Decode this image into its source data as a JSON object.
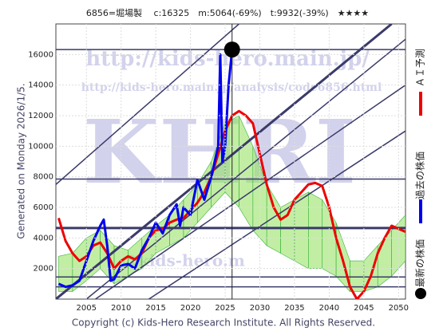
{
  "chart_data": {
    "type": "line",
    "title": "6856=堀場製　 c:16325　m:5064(-69%)　t:9932(-39%)　★★★★",
    "side_label": "Generated on Monday 2026/1/5.",
    "footer": "Copyright (c) Kids-Hero Research Institute. All Rights Reserved.",
    "watermarks": [
      "http://kids-hero.main.jp/",
      "http://kids-hero.main.jp/analysis/code6856.html",
      "KHRI",
      "@kids-hero.m"
    ],
    "xlim": [
      2000.6,
      2051
    ],
    "ylim": [
      0,
      18000
    ],
    "xticks": [
      2005,
      2010,
      2015,
      2020,
      2025,
      2030,
      2035,
      2040,
      2045,
      2050
    ],
    "yticks": [
      2000,
      4000,
      6000,
      8000,
      10000,
      12000,
      14000,
      16000
    ],
    "grid": true,
    "series": [
      {
        "name": "ＡＩ予測",
        "color": "#ee0000",
        "x": [
          2001,
          2002,
          2003,
          2004,
          2005,
          2006,
          2007,
          2008,
          2009,
          2010,
          2011,
          2012,
          2013,
          2014,
          2015,
          2016,
          2017,
          2018,
          2019,
          2020,
          2021,
          2022,
          2023,
          2024,
          2025,
          2026,
          2027,
          2028,
          2029,
          2030,
          2031,
          2032,
          2033,
          2034,
          2035,
          2036,
          2037,
          2038,
          2039,
          2040,
          2041,
          2042,
          2043,
          2044,
          2045,
          2046,
          2047,
          2048,
          2049,
          2050,
          2051
        ],
        "values": [
          5300,
          3800,
          3000,
          2500,
          2800,
          3500,
          3700,
          3000,
          2000,
          2500,
          2800,
          2600,
          3000,
          4000,
          4500,
          4600,
          5000,
          5200,
          5300,
          5800,
          6300,
          7000,
          8000,
          9500,
          11000,
          12000,
          12300,
          12000,
          11500,
          9500,
          7500,
          6000,
          5200,
          5500,
          6500,
          7000,
          7500,
          7600,
          7400,
          6000,
          4000,
          2500,
          800,
          0,
          500,
          1500,
          3000,
          4000,
          4800,
          4600,
          4400
        ]
      },
      {
        "name": "過去の株価",
        "color": "#0000ee",
        "x": [
          2001,
          2002,
          2003,
          2004,
          2005,
          2006,
          2007,
          2007.5,
          2008,
          2008.5,
          2009,
          2010,
          2011,
          2012,
          2013,
          2014,
          2015,
          2016,
          2017,
          2018,
          2018.5,
          2019,
          2020,
          2021,
          2022,
          2023,
          2024,
          2024.3,
          2024.6,
          2025,
          2025.5,
          2026
        ],
        "values": [
          1000,
          800,
          900,
          1200,
          2500,
          3800,
          4800,
          5200,
          3500,
          1200,
          1300,
          2200,
          2300,
          2000,
          3200,
          4000,
          5000,
          4300,
          5500,
          6200,
          4800,
          6000,
          5500,
          7800,
          6500,
          8000,
          10000,
          16000,
          9000,
          10000,
          14000,
          16325
        ]
      }
    ],
    "band": {
      "color": "#8fe05a",
      "x": [
        2001,
        2003,
        2005,
        2007,
        2009,
        2011,
        2013,
        2015,
        2017,
        2019,
        2021,
        2023,
        2025,
        2027,
        2029,
        2031,
        2033,
        2035,
        2037,
        2039,
        2041,
        2043,
        2045,
        2047,
        2049,
        2051
      ],
      "lower": [
        500,
        500,
        1200,
        2000,
        1000,
        1500,
        2000,
        3000,
        3500,
        4000,
        5000,
        6000,
        7000,
        6000,
        4500,
        3500,
        3000,
        2500,
        2000,
        2000,
        1500,
        500,
        500,
        800,
        1500,
        2500
      ],
      "upper": [
        2800,
        3000,
        4000,
        4500,
        3500,
        3200,
        4000,
        4800,
        5500,
        6500,
        7500,
        9000,
        11500,
        12000,
        10000,
        7500,
        6000,
        6500,
        7000,
        6500,
        5000,
        2500,
        2500,
        3500,
        4500,
        5500
      ]
    },
    "levels": [
      16325,
      7850,
      4650,
      1450,
      800
    ],
    "trendlines": [
      {
        "x": [
          2000.6,
          2027
        ],
        "y": [
          7500,
          18000
        ]
      },
      {
        "x": [
          2000.6,
          2049
        ],
        "y": [
          0,
          18000
        ]
      },
      {
        "x": [
          2005,
          2051
        ],
        "y": [
          0,
          17000
        ]
      },
      {
        "x": [
          2006.3,
          2051
        ],
        "y": [
          0,
          14000
        ]
      },
      {
        "x": [
          2014,
          2051
        ],
        "y": [
          0,
          11000
        ]
      }
    ],
    "latest": {
      "name": "最新の株価",
      "color": "#000000",
      "x": 2026,
      "value": 16325
    }
  }
}
